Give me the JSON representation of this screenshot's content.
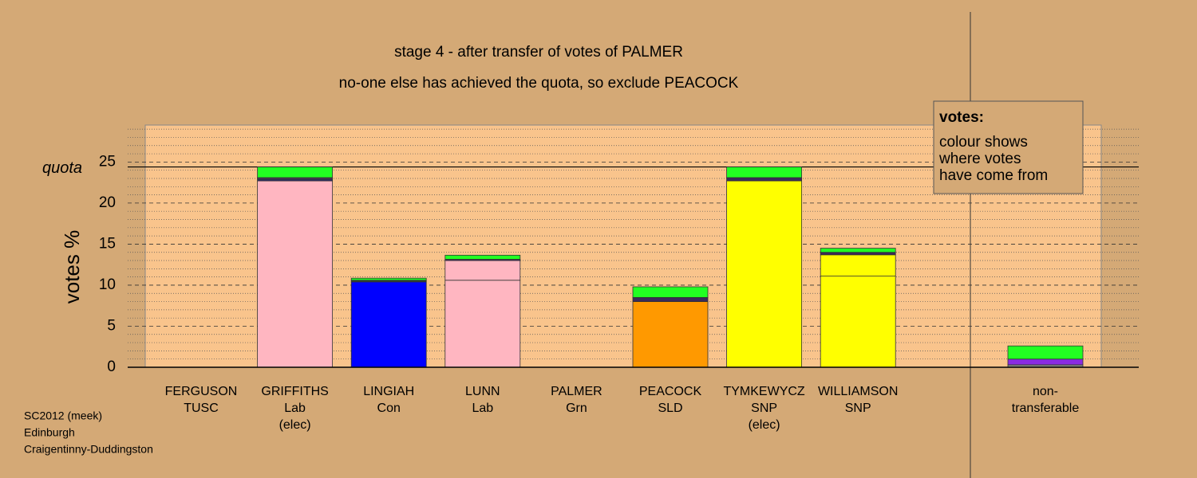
{
  "chart_data": {
    "type": "stacked_bar",
    "title": "stage 4 - after transfer of votes of PALMER",
    "subtitle": "no-one else has achieved the quota, so exclude PEACOCK",
    "y_label": "votes %",
    "ylim": [
      0,
      29.5
    ],
    "yticks": [
      0,
      5,
      10,
      15,
      20,
      25
    ],
    "minor_yticks": [
      1,
      2,
      3,
      4,
      6,
      7,
      8,
      9,
      11,
      12,
      13,
      14,
      16,
      17,
      18,
      19,
      21,
      22,
      23,
      24,
      26,
      27,
      28,
      29
    ],
    "quota": {
      "value": 24.4,
      "label": "quota"
    },
    "bars": [
      {
        "label": [
          "FERGUSON",
          "TUSC"
        ],
        "segments": []
      },
      {
        "label": [
          "GRIFFITHS",
          "Lab",
          "(elec)"
        ],
        "segments": [
          {
            "color": "#ffb6c1",
            "value": 22.7
          },
          {
            "color": "#2b2b6b",
            "value": 0.2
          },
          {
            "color": "#4a3a5a",
            "value": 0.2
          },
          {
            "color": "#22ff22",
            "value": 1.3
          }
        ]
      },
      {
        "label": [
          "LINGIAH",
          "Con"
        ],
        "segments": [
          {
            "color": "#0000ff",
            "value": 10.4
          },
          {
            "color": "#2f3f2f",
            "value": 0.2
          },
          {
            "color": "#22ff22",
            "value": 0.25
          }
        ]
      },
      {
        "label": [
          "LUNN",
          "Lab"
        ],
        "segments": [
          {
            "color": "#ffb6c1",
            "value": 10.6
          },
          {
            "color": "#ffb6c1",
            "value": 2.4
          },
          {
            "color": "#3b2a5a",
            "value": 0.15
          },
          {
            "color": "#22ff22",
            "value": 0.5
          }
        ]
      },
      {
        "label": [
          "PALMER",
          "Grn"
        ],
        "segments": []
      },
      {
        "label": [
          "PEACOCK",
          "SLD"
        ],
        "segments": [
          {
            "color": "#ff9900",
            "value": 8.0
          },
          {
            "color": "#3b2a5a",
            "value": 0.5
          },
          {
            "color": "#22ff22",
            "value": 1.3
          }
        ]
      },
      {
        "label": [
          "TYMKEWYCZ",
          "SNP",
          "(elec)"
        ],
        "segments": [
          {
            "color": "#ffff00",
            "value": 22.7
          },
          {
            "color": "#3b2a5a",
            "value": 0.4
          },
          {
            "color": "#22ff22",
            "value": 1.3
          }
        ]
      },
      {
        "label": [
          "WILLIAMSON",
          "SNP"
        ],
        "segments": [
          {
            "color": "#ffff00",
            "value": 11.1
          },
          {
            "color": "#ffff00",
            "value": 2.6
          },
          {
            "color": "#3b2a5a",
            "value": 0.3
          },
          {
            "color": "#22ff22",
            "value": 0.5
          }
        ]
      },
      {
        "label": [
          "non-",
          "transferable"
        ],
        "segments": [
          {
            "color": "#888888",
            "value": 0.3
          },
          {
            "color": "#8a2be2",
            "value": 0.7
          },
          {
            "color": "#22ff22",
            "value": 1.6
          }
        ]
      }
    ],
    "legend": {
      "title": "votes:",
      "lines": [
        "colour shows",
        "where votes",
        "have come from"
      ]
    },
    "footer": [
      "SC2012 (meek)",
      "Edinburgh",
      "Craigentinny-Duddingston"
    ]
  }
}
